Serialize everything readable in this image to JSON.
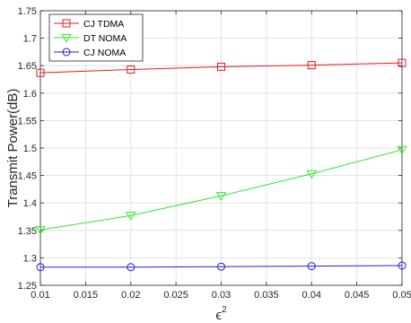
{
  "chart_data": {
    "type": "line",
    "title": "",
    "xlabel": "ϵ",
    "xlabel_superscript": "2",
    "ylabel": "Transmit Power(dB)",
    "xlim": [
      0.01,
      0.05
    ],
    "ylim": [
      1.25,
      1.75
    ],
    "x_ticks": [
      "0.01",
      "0.015",
      "0.02",
      "0.025",
      "0.03",
      "0.035",
      "0.04",
      "0.045",
      "0.05"
    ],
    "y_ticks": [
      "1.25",
      "1.3",
      "1.35",
      "1.4",
      "1.45",
      "1.5",
      "1.55",
      "1.6",
      "1.65",
      "1.7",
      "1.75"
    ],
    "grid": true,
    "legend_position": "top-left",
    "x": [
      0.01,
      0.02,
      0.03,
      0.04,
      0.05
    ],
    "series": [
      {
        "name": "CJ TDMA",
        "color": "#e41a1c",
        "marker": "square",
        "values": [
          1.637,
          1.643,
          1.648,
          1.651,
          1.655
        ]
      },
      {
        "name": "DT NOMA",
        "color": "#2ee82e",
        "marker": "triangle-down",
        "values": [
          1.351,
          1.377,
          1.413,
          1.453,
          1.497
        ]
      },
      {
        "name": "CJ NOMA",
        "color": "#1f1fd6",
        "marker": "circle",
        "values": [
          1.283,
          1.283,
          1.284,
          1.285,
          1.286
        ]
      }
    ]
  }
}
